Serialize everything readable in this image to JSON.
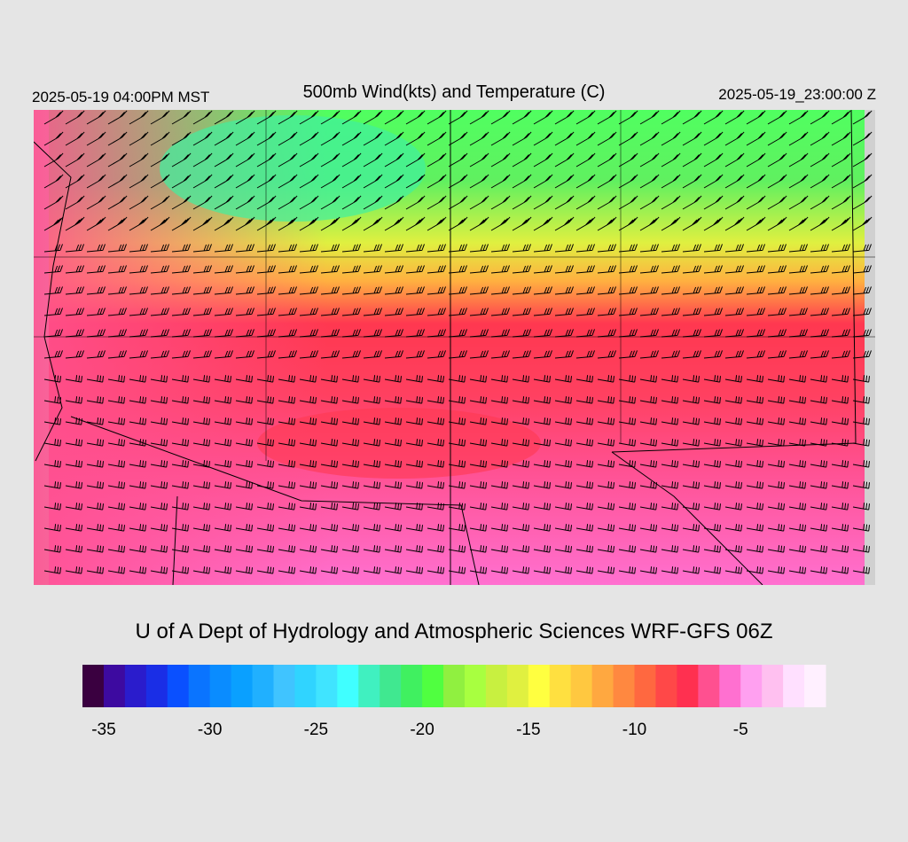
{
  "header": {
    "left": "2025-05-19 04:00PM MST",
    "title": "500mb Wind(kts) and Temperature (C)",
    "right": "2025-05-19_23:00:00 Z"
  },
  "credit": "U of A Dept of Hydrology and Atmospheric Sciences WRF-GFS 06Z",
  "colorbar": {
    "range": [
      -36,
      -1
    ],
    "ticks": [
      -35,
      -30,
      -25,
      -20,
      -15,
      -10,
      -5
    ],
    "colors": [
      "#3a0040",
      "#3d0aa0",
      "#2a1ccc",
      "#1a2ee6",
      "#0a50ff",
      "#0a74ff",
      "#0a8cff",
      "#0aa0ff",
      "#20b0ff",
      "#40c4ff",
      "#30d4ff",
      "#40e4ff",
      "#40ffff",
      "#40f0c0",
      "#40e890",
      "#40f060",
      "#50ff40",
      "#90f040",
      "#a8ff40",
      "#c8f040",
      "#e0f040",
      "#ffff40",
      "#ffe040",
      "#ffc840",
      "#ffa840",
      "#ff8840",
      "#ff6840",
      "#ff4848",
      "#ff3050",
      "#ff5090",
      "#ff70d0",
      "#ffa0f0",
      "#ffc0f0",
      "#ffe0ff",
      "#fff0ff"
    ]
  }
}
